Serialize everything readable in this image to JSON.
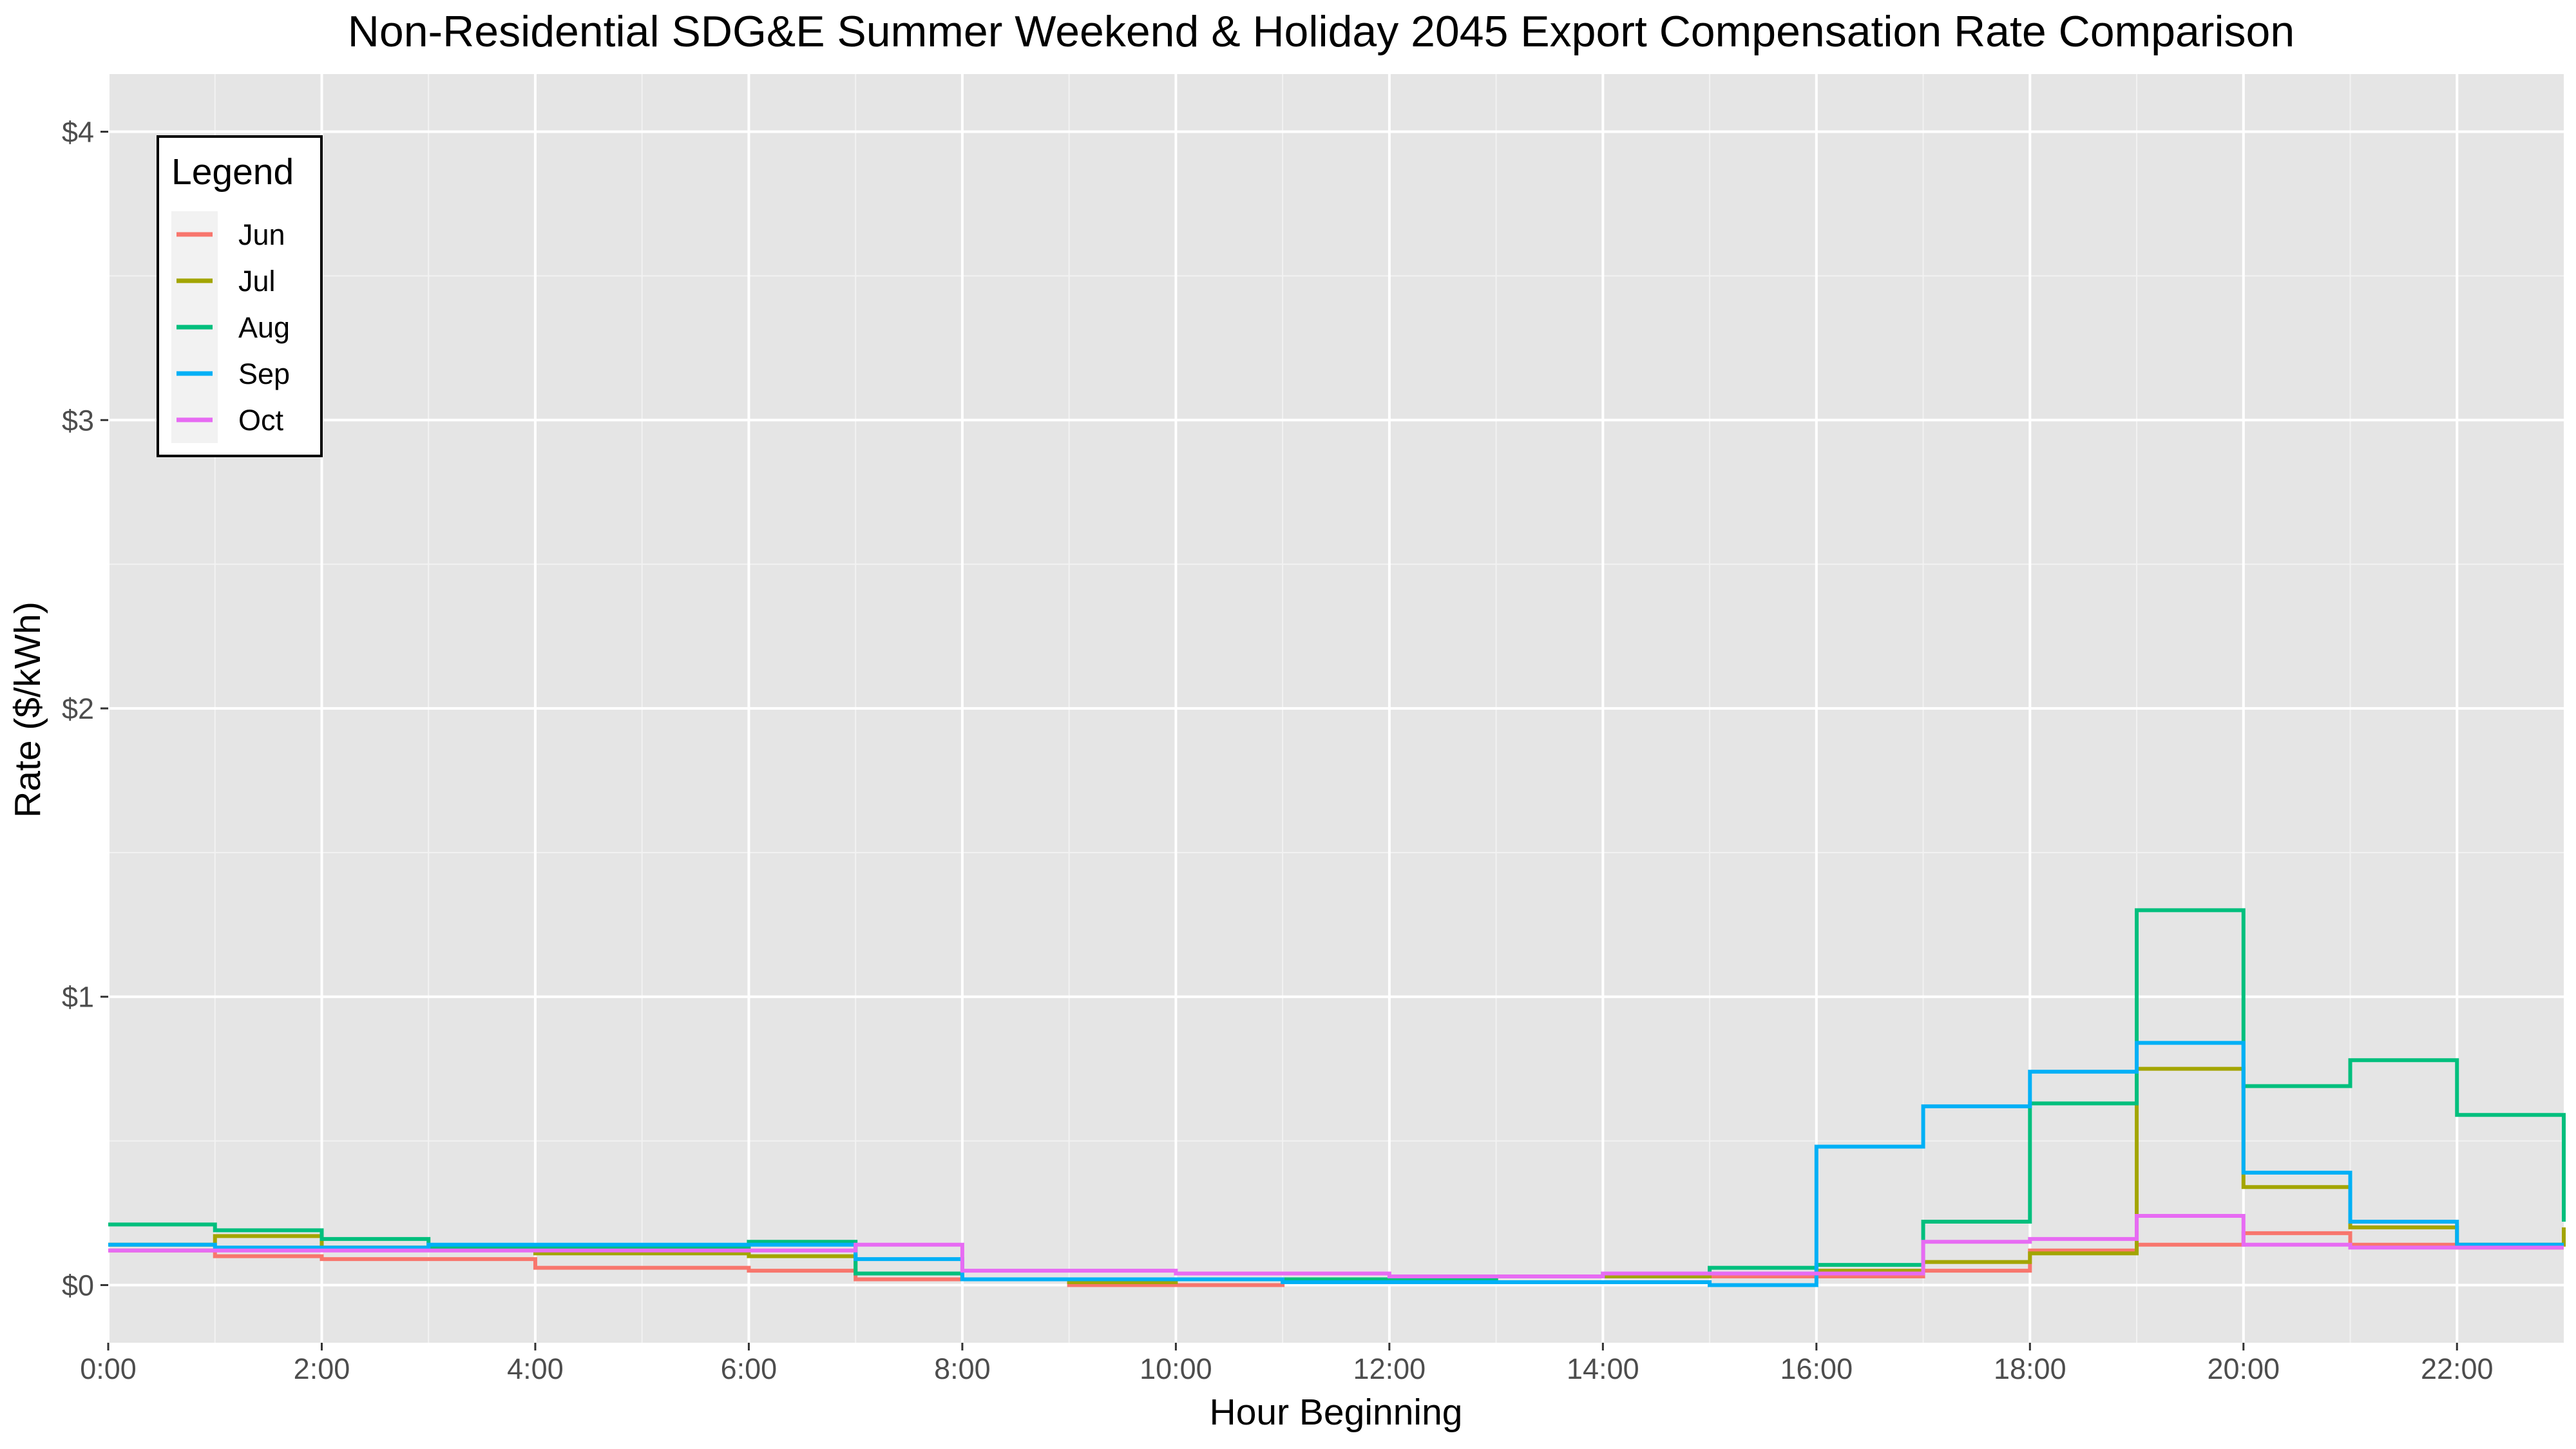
{
  "chart_data": {
    "type": "line",
    "step": true,
    "title": "Non-Residential SDG&E Summer Weekend & Holiday 2045 Export Compensation Rate Comparison",
    "xlabel": "Hour Beginning",
    "ylabel": "Rate ($/kWh)",
    "xlim": [
      0,
      23
    ],
    "ylim": [
      -0.2,
      4.2
    ],
    "x_ticks": [
      0,
      2,
      4,
      6,
      8,
      10,
      12,
      14,
      16,
      18,
      20,
      22
    ],
    "x_tick_labels": [
      "0:00",
      "2:00",
      "4:00",
      "6:00",
      "8:00",
      "10:00",
      "12:00",
      "14:00",
      "16:00",
      "18:00",
      "20:00",
      "22:00"
    ],
    "y_ticks": [
      0,
      1,
      2,
      3,
      4
    ],
    "y_tick_labels": [
      "$0",
      "$1",
      "$2",
      "$3",
      "$4"
    ],
    "grid": true,
    "background": "#e5e5e5",
    "legend": {
      "title": "Legend",
      "position": "top-left"
    },
    "x": [
      0,
      1,
      2,
      3,
      4,
      5,
      6,
      7,
      8,
      9,
      10,
      11,
      12,
      13,
      14,
      15,
      16,
      17,
      18,
      19,
      20,
      21,
      22,
      23
    ],
    "series": [
      {
        "name": "Jun",
        "color": "#F8766D",
        "values": [
          0.12,
          0.1,
          0.09,
          0.09,
          0.06,
          0.06,
          0.05,
          0.02,
          0.02,
          0.0,
          0.0,
          0.01,
          0.02,
          0.03,
          0.03,
          0.03,
          0.03,
          0.05,
          0.12,
          0.14,
          0.18,
          0.14,
          0.13,
          0.13
        ]
      },
      {
        "name": "Jul",
        "color": "#A3A500",
        "values": [
          0.14,
          0.17,
          0.13,
          0.13,
          0.11,
          0.11,
          0.1,
          0.04,
          0.02,
          0.01,
          0.02,
          0.02,
          0.02,
          0.03,
          0.03,
          0.04,
          0.05,
          0.08,
          0.11,
          0.75,
          0.34,
          0.2,
          0.14,
          0.2
        ]
      },
      {
        "name": "Aug",
        "color": "#00BF7D",
        "values": [
          0.21,
          0.19,
          0.16,
          0.13,
          0.13,
          0.13,
          0.15,
          0.04,
          0.02,
          0.02,
          0.02,
          0.02,
          0.02,
          0.03,
          0.04,
          0.06,
          0.07,
          0.22,
          0.63,
          1.3,
          0.69,
          0.78,
          0.59,
          0.22
        ]
      },
      {
        "name": "Sep",
        "color": "#00B0F6",
        "values": [
          0.14,
          0.13,
          0.13,
          0.14,
          0.14,
          0.14,
          0.14,
          0.09,
          0.02,
          0.02,
          0.02,
          0.01,
          0.01,
          0.01,
          0.01,
          0.0,
          0.48,
          0.62,
          0.74,
          0.84,
          0.39,
          0.22,
          0.14,
          0.14
        ]
      },
      {
        "name": "Oct",
        "color": "#E76BF3",
        "values": [
          0.12,
          0.12,
          0.12,
          0.12,
          0.12,
          0.12,
          0.12,
          0.14,
          0.05,
          0.05,
          0.04,
          0.04,
          0.03,
          0.03,
          0.04,
          0.04,
          0.04,
          0.15,
          0.16,
          0.24,
          0.14,
          0.13,
          0.13,
          0.13
        ]
      }
    ]
  }
}
